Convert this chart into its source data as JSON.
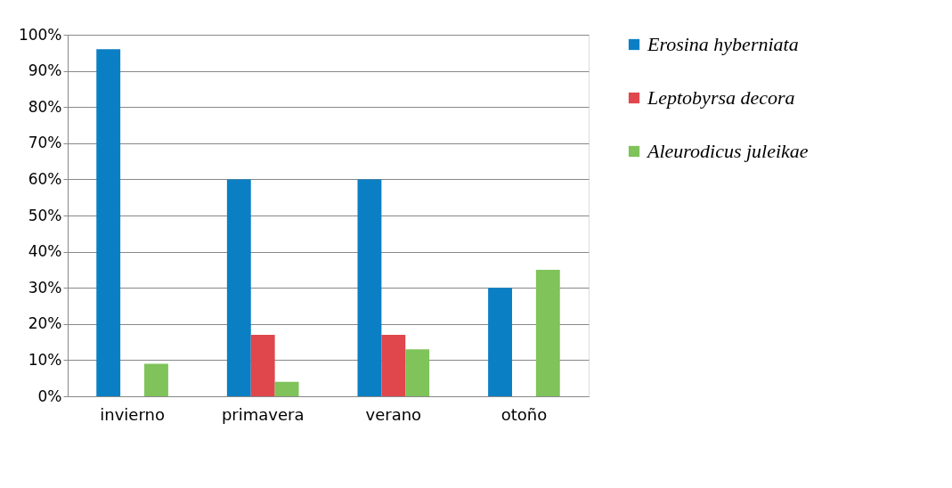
{
  "chart_data": {
    "type": "bar",
    "categories": [
      "invierno",
      "primavera",
      "verano",
      "otoño"
    ],
    "series": [
      {
        "name": "Erosina hyberniata",
        "color": "#0a7fc4",
        "values": [
          96,
          60,
          60,
          30
        ]
      },
      {
        "name": "Leptobyrsa decora",
        "color": "#e0474c",
        "values": [
          null,
          17,
          17,
          null
        ]
      },
      {
        "name": "Aleurodicus juleikae",
        "color": "#7fc35a",
        "values": [
          9,
          4,
          13,
          35
        ]
      }
    ],
    "ylim": [
      0,
      100
    ],
    "yticks": [
      {
        "value": 0,
        "label": "0%"
      },
      {
        "value": 10,
        "label": "10%"
      },
      {
        "value": 20,
        "label": "20%"
      },
      {
        "value": 30,
        "label": "30%"
      },
      {
        "value": 40,
        "label": "40%"
      },
      {
        "value": 50,
        "label": "50%"
      },
      {
        "value": 60,
        "label": "60%"
      },
      {
        "value": 70,
        "label": "70%"
      },
      {
        "value": 80,
        "label": "80%"
      },
      {
        "value": 90,
        "label": "90%"
      },
      {
        "value": 100,
        "label": "100%"
      }
    ],
    "grid": "y",
    "legend": "right"
  }
}
